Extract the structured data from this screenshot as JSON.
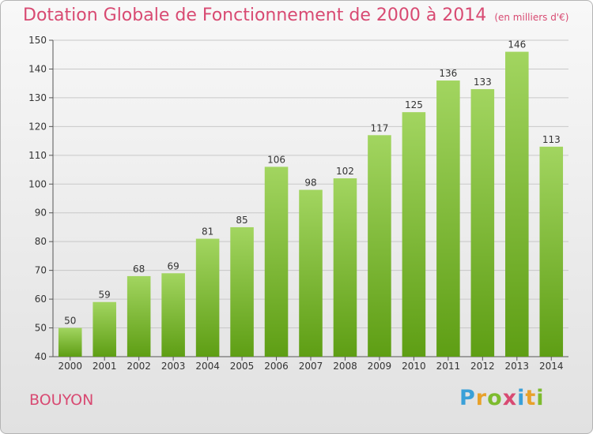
{
  "title": "Dotation Globale de Fonctionnement de 2000 à 2014",
  "subtitle": "(en milliers d'€)",
  "commune": "BOUYON",
  "logo": {
    "letters": [
      "P",
      "r",
      "o",
      "x",
      "i",
      "t",
      "i"
    ],
    "colors": [
      "#3aa0d8",
      "#e8a12a",
      "#7dbb2e",
      "#d84a72",
      "#3aa0d8",
      "#e8a12a",
      "#7dbb2e"
    ]
  },
  "colors": {
    "bar_light": "#a2d560",
    "bar_dark": "#5e9e14",
    "title": "#d84a72",
    "grid": "#c8c8c8"
  },
  "chart_data": {
    "type": "bar",
    "categories": [
      "2000",
      "2001",
      "2002",
      "2003",
      "2004",
      "2005",
      "2006",
      "2007",
      "2008",
      "2009",
      "2010",
      "2011",
      "2012",
      "2013",
      "2014"
    ],
    "values": [
      50,
      59,
      68,
      69,
      81,
      85,
      106,
      98,
      102,
      117,
      125,
      136,
      133,
      146,
      113
    ],
    "title": "Dotation Globale de Fonctionnement de 2000 à 2014",
    "subtitle": "(en milliers d'€)",
    "ylim": [
      40,
      150
    ],
    "yticks": [
      40,
      50,
      60,
      70,
      80,
      90,
      100,
      110,
      120,
      130,
      140,
      150
    ],
    "grid": true,
    "legend": "none"
  }
}
